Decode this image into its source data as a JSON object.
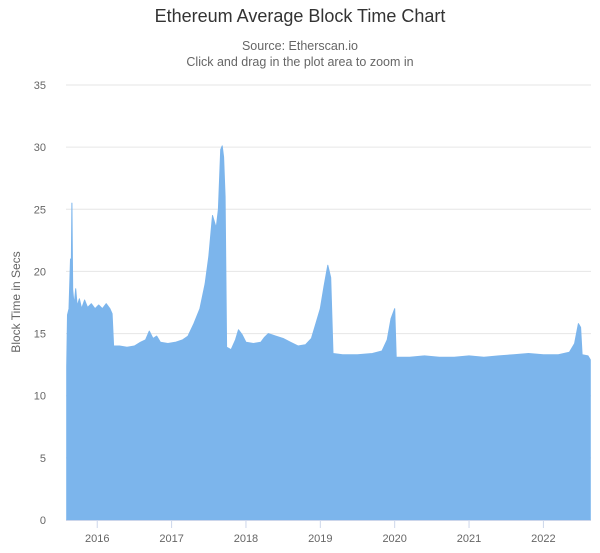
{
  "chart_data": {
    "type": "area",
    "title": "Ethereum Average Block Time Chart",
    "subtitle_lines": [
      "Source: Etherscan.io",
      "Click and drag in the plot area to zoom in"
    ],
    "ylabel": "Block Time in Secs",
    "xlabel": "",
    "ylim": [
      0,
      35
    ],
    "yticks": [
      0,
      5,
      10,
      15,
      20,
      25,
      30,
      35
    ],
    "xlim": [
      2015.58,
      2022.64
    ],
    "xticks": [
      {
        "value": 2016.0,
        "label": "2016"
      },
      {
        "value": 2017.0,
        "label": "2017"
      },
      {
        "value": 2018.0,
        "label": "2018"
      },
      {
        "value": 2019.0,
        "label": "2019"
      },
      {
        "value": 2020.0,
        "label": "2020"
      },
      {
        "value": 2021.0,
        "label": "2021"
      },
      {
        "value": 2022.0,
        "label": "2022"
      }
    ],
    "grid": true,
    "legend": "none",
    "series": [
      {
        "color": "#7cb5ec",
        "points": [
          [
            2015.59,
            12.3
          ],
          [
            2015.6,
            16.5
          ],
          [
            2015.62,
            17.0
          ],
          [
            2015.64,
            21.0
          ],
          [
            2015.65,
            19.5
          ],
          [
            2015.66,
            25.5
          ],
          [
            2015.67,
            18.5
          ],
          [
            2015.69,
            17.3
          ],
          [
            2015.71,
            18.6
          ],
          [
            2015.73,
            17.2
          ],
          [
            2015.76,
            17.8
          ],
          [
            2015.79,
            17.0
          ],
          [
            2015.83,
            17.7
          ],
          [
            2015.87,
            17.1
          ],
          [
            2015.92,
            17.4
          ],
          [
            2015.97,
            17.0
          ],
          [
            2016.02,
            17.3
          ],
          [
            2016.07,
            17.0
          ],
          [
            2016.12,
            17.4
          ],
          [
            2016.17,
            17.0
          ],
          [
            2016.2,
            16.6
          ],
          [
            2016.22,
            14.0
          ],
          [
            2016.3,
            14.0
          ],
          [
            2016.4,
            13.9
          ],
          [
            2016.5,
            14.0
          ],
          [
            2016.58,
            14.3
          ],
          [
            2016.65,
            14.5
          ],
          [
            2016.7,
            15.2
          ],
          [
            2016.75,
            14.6
          ],
          [
            2016.8,
            14.8
          ],
          [
            2016.85,
            14.3
          ],
          [
            2016.95,
            14.2
          ],
          [
            2017.05,
            14.3
          ],
          [
            2017.15,
            14.5
          ],
          [
            2017.22,
            14.8
          ],
          [
            2017.3,
            15.8
          ],
          [
            2017.38,
            17.0
          ],
          [
            2017.45,
            19.0
          ],
          [
            2017.5,
            21.2
          ],
          [
            2017.55,
            24.5
          ],
          [
            2017.6,
            23.5
          ],
          [
            2017.63,
            25.0
          ],
          [
            2017.66,
            29.8
          ],
          [
            2017.68,
            30.1
          ],
          [
            2017.7,
            29.2
          ],
          [
            2017.72,
            26.0
          ],
          [
            2017.74,
            13.9
          ],
          [
            2017.8,
            13.7
          ],
          [
            2017.86,
            14.5
          ],
          [
            2017.9,
            15.3
          ],
          [
            2017.95,
            14.9
          ],
          [
            2018.0,
            14.3
          ],
          [
            2018.1,
            14.2
          ],
          [
            2018.2,
            14.3
          ],
          [
            2018.25,
            14.7
          ],
          [
            2018.3,
            15.0
          ],
          [
            2018.4,
            14.8
          ],
          [
            2018.5,
            14.6
          ],
          [
            2018.6,
            14.3
          ],
          [
            2018.7,
            14.0
          ],
          [
            2018.8,
            14.1
          ],
          [
            2018.88,
            14.6
          ],
          [
            2018.95,
            16.0
          ],
          [
            2019.0,
            17.0
          ],
          [
            2019.05,
            18.8
          ],
          [
            2019.1,
            20.5
          ],
          [
            2019.14,
            19.5
          ],
          [
            2019.17,
            13.4
          ],
          [
            2019.3,
            13.3
          ],
          [
            2019.5,
            13.3
          ],
          [
            2019.7,
            13.4
          ],
          [
            2019.83,
            13.6
          ],
          [
            2019.9,
            14.5
          ],
          [
            2019.95,
            16.2
          ],
          [
            2020.0,
            17.0
          ],
          [
            2020.02,
            13.1
          ],
          [
            2020.2,
            13.1
          ],
          [
            2020.4,
            13.2
          ],
          [
            2020.6,
            13.1
          ],
          [
            2020.8,
            13.1
          ],
          [
            2021.0,
            13.2
          ],
          [
            2021.2,
            13.1
          ],
          [
            2021.4,
            13.2
          ],
          [
            2021.6,
            13.3
          ],
          [
            2021.8,
            13.4
          ],
          [
            2022.0,
            13.3
          ],
          [
            2022.2,
            13.3
          ],
          [
            2022.35,
            13.5
          ],
          [
            2022.42,
            14.2
          ],
          [
            2022.47,
            15.8
          ],
          [
            2022.5,
            15.5
          ],
          [
            2022.52,
            13.3
          ],
          [
            2022.6,
            13.2
          ],
          [
            2022.63,
            12.9
          ]
        ]
      }
    ]
  }
}
